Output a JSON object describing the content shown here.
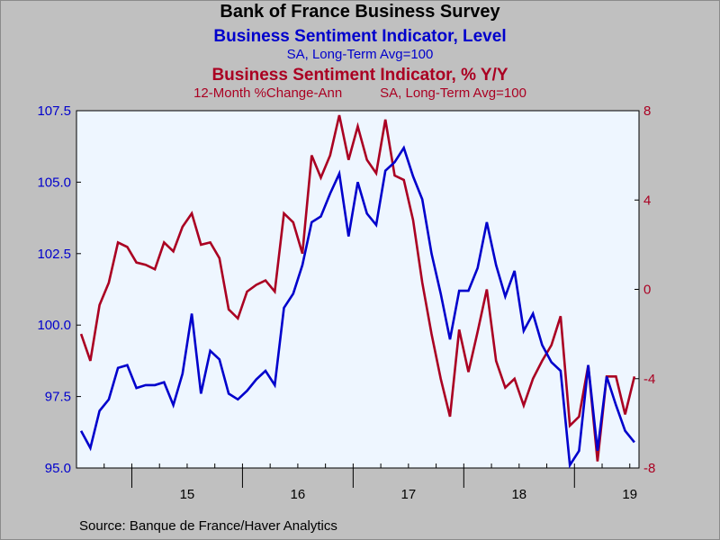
{
  "titles": {
    "main": "Bank of France Business Survey",
    "series1": "Business Sentiment Indicator, Level",
    "series1_sub": "SA, Long-Term Avg=100",
    "series2": "Business Sentiment Indicator, % Y/Y",
    "series2_sub_left": "12-Month %Change-Ann",
    "series2_sub_right": "SA, Long-Term Avg=100"
  },
  "source": "Source:  Banque de France/Haver Analytics",
  "colors": {
    "series1": "#0000cc",
    "series2": "#aa0022",
    "plot_bg": "#eef6ff",
    "page_bg": "#c0c0c0"
  },
  "chart_data": {
    "type": "line",
    "x_start": "2014-07",
    "x_frequency": "monthly",
    "x_tick_labels": [
      "15",
      "16",
      "17",
      "18",
      "19"
    ],
    "y_left": {
      "ylim": [
        95.0,
        107.5
      ],
      "ticks": [
        "95.0",
        "97.5",
        "100.0",
        "102.5",
        "105.0",
        "107.5"
      ]
    },
    "y_right": {
      "ylim": [
        -8,
        8
      ],
      "ticks": [
        "-8",
        "-4",
        "0",
        "4",
        "8"
      ]
    },
    "grid": false,
    "series": [
      {
        "name": "Business Sentiment Indicator, Level",
        "axis": "left",
        "values": [
          96.3,
          95.7,
          97.0,
          97.4,
          98.5,
          98.6,
          97.8,
          97.9,
          97.9,
          98.0,
          97.2,
          98.3,
          100.4,
          97.6,
          99.1,
          98.8,
          97.6,
          97.4,
          97.7,
          98.1,
          98.4,
          97.9,
          100.6,
          101.1,
          102.1,
          103.6,
          103.8,
          104.6,
          105.3,
          103.1,
          105.0,
          103.9,
          103.5,
          105.4,
          105.7,
          106.2,
          105.2,
          104.4,
          102.5,
          101.1,
          99.5,
          101.2,
          101.2,
          102.0,
          103.6,
          102.1,
          101.0,
          101.9,
          99.8,
          100.4,
          99.3,
          98.7,
          98.4,
          95.1,
          95.6,
          98.6,
          95.6,
          98.2,
          97.2,
          96.3,
          95.9
        ]
      },
      {
        "name": "Business Sentiment Indicator, % Y/Y",
        "axis": "right",
        "values": [
          -2.0,
          -3.2,
          -0.7,
          0.3,
          2.1,
          1.9,
          1.2,
          1.1,
          0.9,
          2.1,
          1.7,
          2.8,
          3.4,
          2.0,
          2.1,
          1.4,
          -0.9,
          -1.3,
          -0.1,
          0.2,
          0.4,
          -0.1,
          3.4,
          3.0,
          1.6,
          6.0,
          5.0,
          6.0,
          7.8,
          5.8,
          7.3,
          5.8,
          5.2,
          7.6,
          5.1,
          4.9,
          3.1,
          0.3,
          -2.0,
          -4.0,
          -5.7,
          -1.8,
          -3.7,
          -1.9,
          0.0,
          -3.2,
          -4.4,
          -4.0,
          -5.2,
          -4.0,
          -3.2,
          -2.5,
          -1.2,
          -6.1,
          -5.7,
          -3.4,
          -7.7,
          -3.9,
          -3.9,
          -5.6,
          -3.9
        ]
      }
    ]
  }
}
